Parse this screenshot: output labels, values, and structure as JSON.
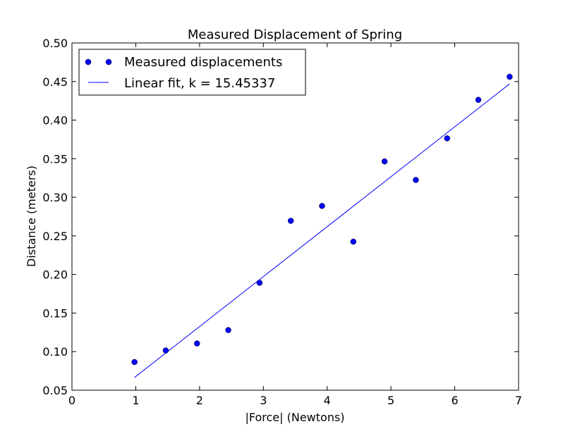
{
  "chart_data": {
    "type": "scatter",
    "title": "Measured Displacement of Spring",
    "xlabel": "|Force| (Newtons)",
    "ylabel": "Distance (meters)",
    "xlim": [
      0,
      7
    ],
    "ylim": [
      0.05,
      0.5
    ],
    "xticks": [
      0,
      1,
      2,
      3,
      4,
      5,
      6,
      7
    ],
    "xtick_labels": [
      "0",
      "1",
      "2",
      "3",
      "4",
      "5",
      "6",
      "7"
    ],
    "yticks": [
      0.05,
      0.1,
      0.15,
      0.2,
      0.25,
      0.3,
      0.35,
      0.4,
      0.45,
      0.5
    ],
    "ytick_labels": [
      "0.05",
      "0.10",
      "0.15",
      "0.20",
      "0.25",
      "0.30",
      "0.35",
      "0.40",
      "0.45",
      "0.50"
    ],
    "grid": false,
    "legend_position": "top-left",
    "series": [
      {
        "name": "Measured displacements",
        "kind": "scatter",
        "color": "#0000ff",
        "x": [
          0.98,
          1.47,
          1.96,
          2.45,
          2.94,
          3.43,
          3.92,
          4.41,
          4.9,
          5.39,
          5.88,
          6.37,
          6.86
        ],
        "y": [
          0.0865,
          0.1015,
          0.1106,
          0.1279,
          0.1892,
          0.2695,
          0.2888,
          0.2425,
          0.3465,
          0.3225,
          0.3764,
          0.4263,
          0.4562
        ]
      },
      {
        "name": "Linear fit, k = 15.45337",
        "kind": "line",
        "color": "#0000ff",
        "x": [
          0.98,
          6.86
        ],
        "y": [
          0.0665,
          0.447
        ]
      }
    ]
  }
}
